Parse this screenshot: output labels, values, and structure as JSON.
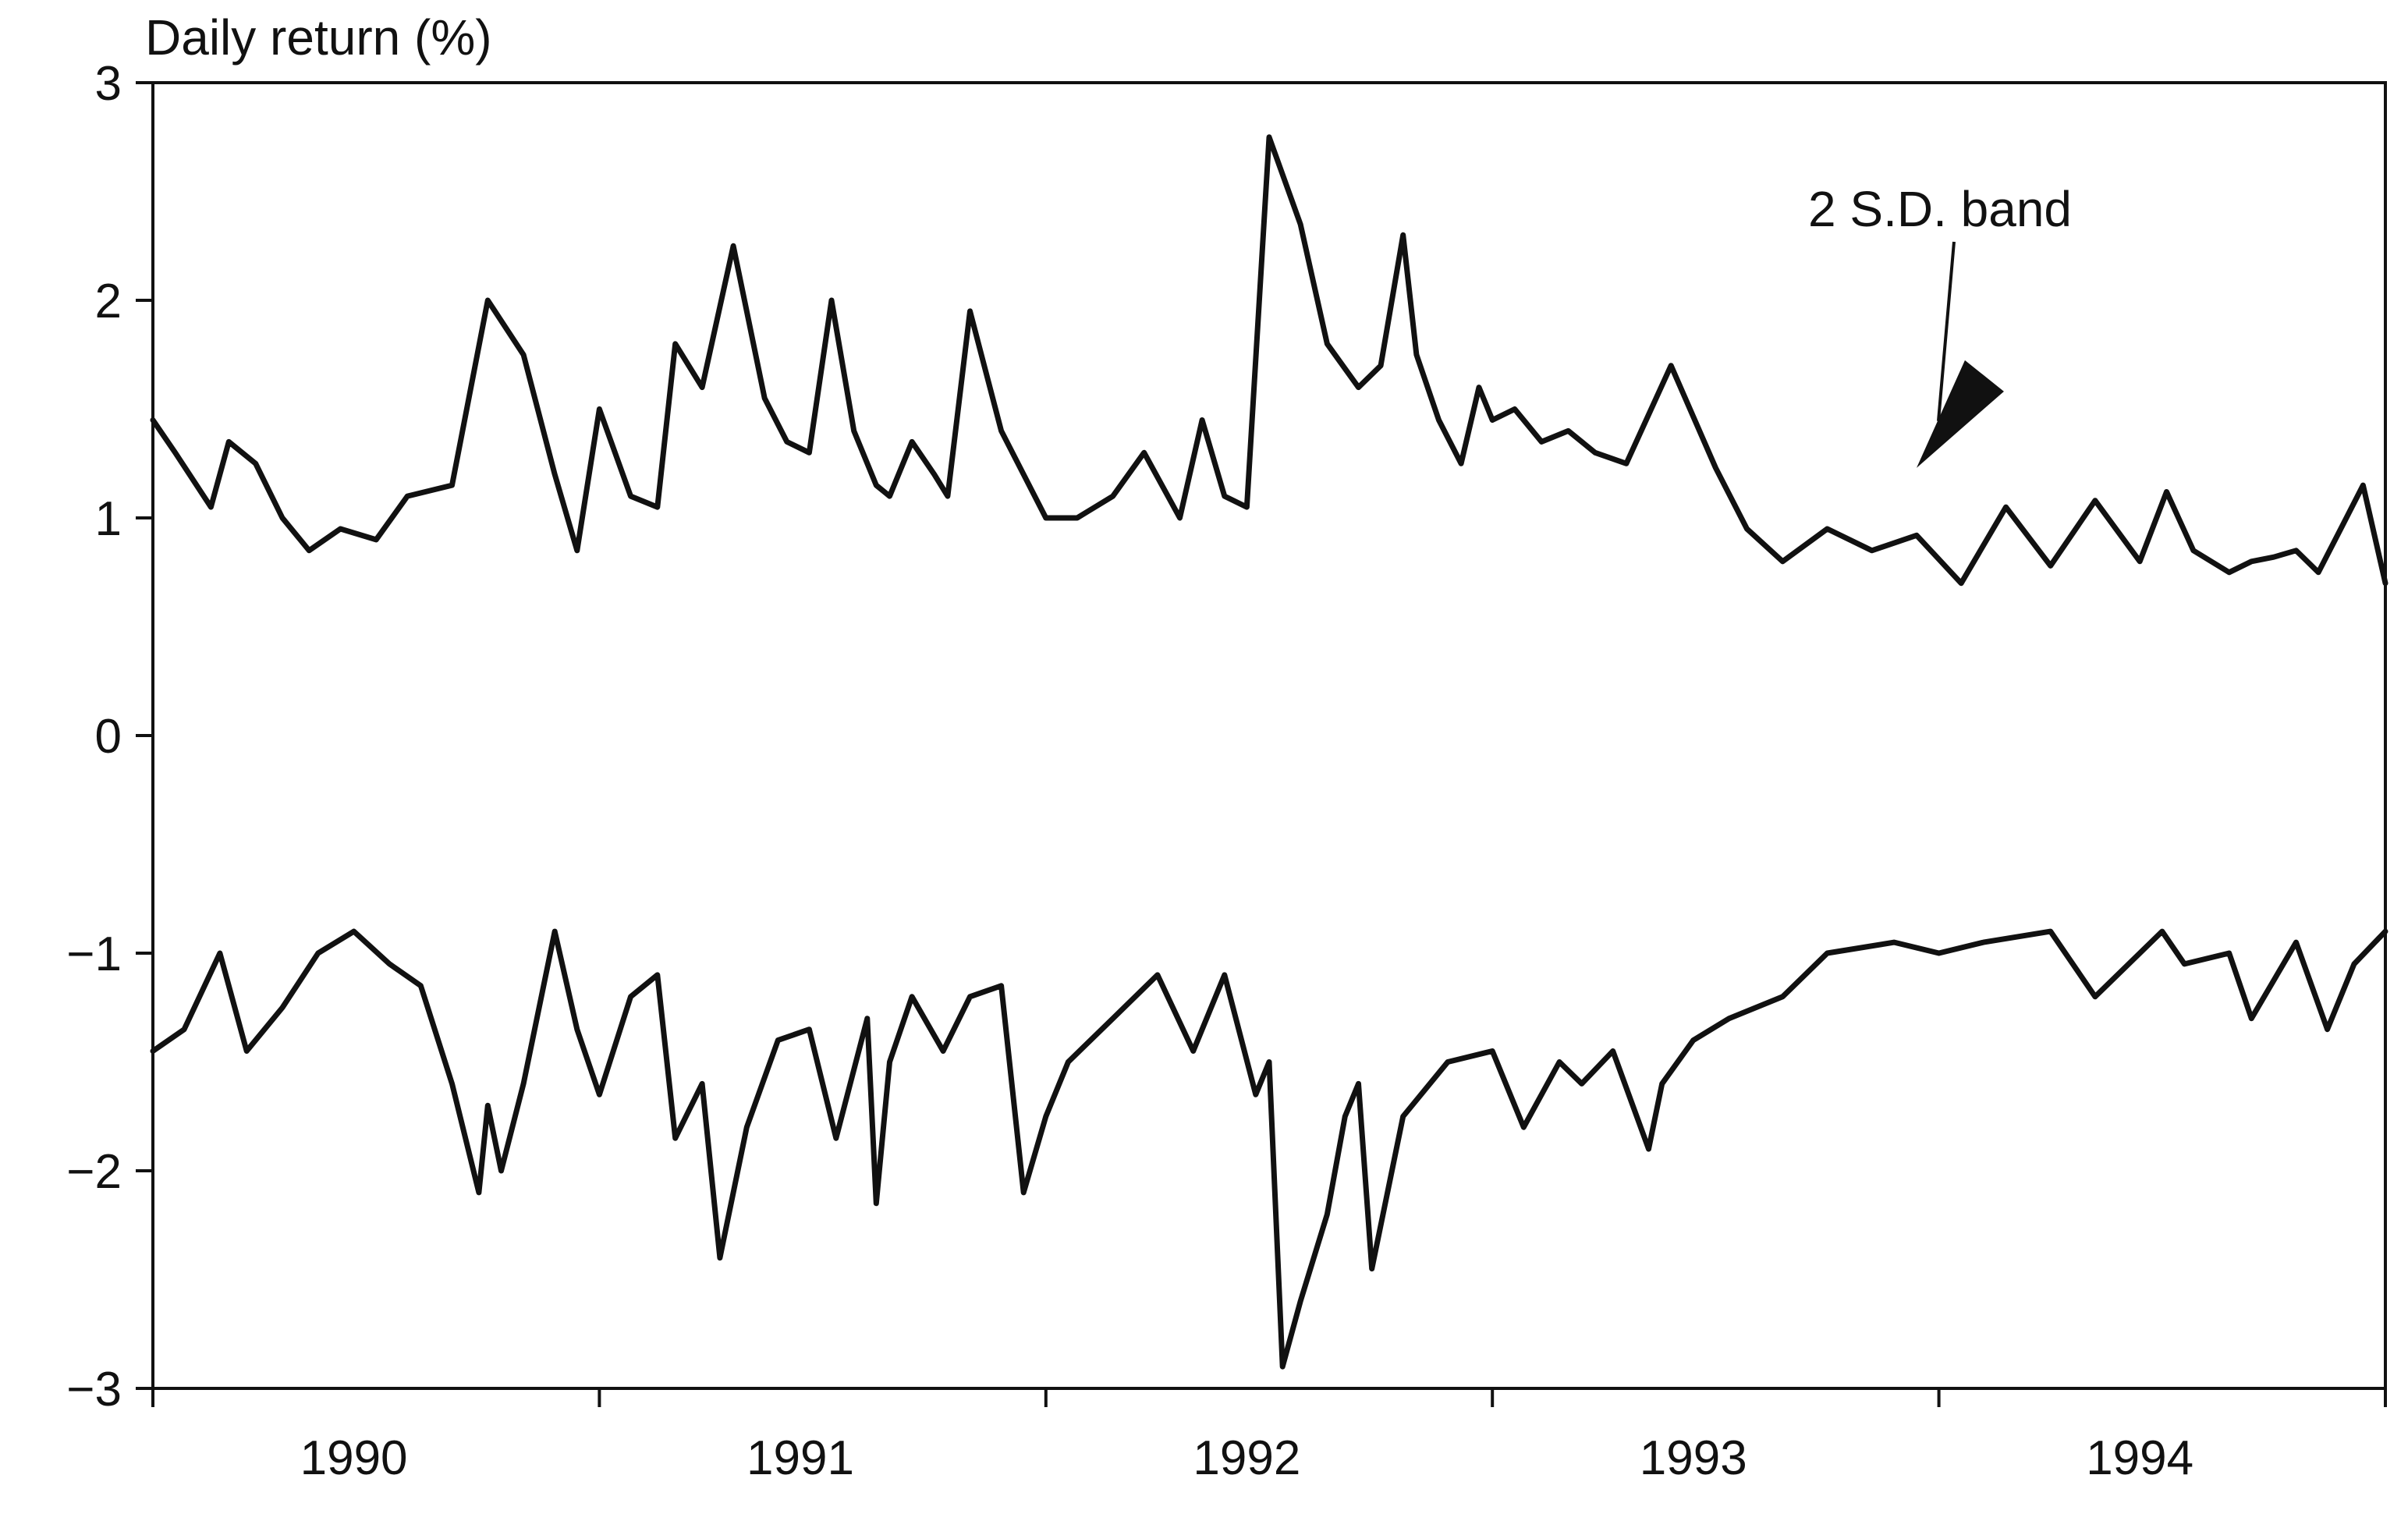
{
  "chart_data": {
    "type": "line",
    "title": "",
    "xlabel": "",
    "ylabel": "Daily return (%)",
    "xlim": [
      1989.55,
      1994.55
    ],
    "ylim": [
      -3,
      3
    ],
    "y_ticks": [
      {
        "value": 3,
        "label": "3"
      },
      {
        "value": 2,
        "label": "2"
      },
      {
        "value": 1,
        "label": "1"
      },
      {
        "value": 0,
        "label": "0"
      },
      {
        "value": -1,
        "label": "−1"
      },
      {
        "value": -2,
        "label": "−2"
      },
      {
        "value": -3,
        "label": "−3"
      }
    ],
    "x_ticks": [
      1989.55,
      1990.55,
      1991.55,
      1992.55,
      1993.55,
      1994.55
    ],
    "x_tick_labels": [
      {
        "value": 1990.0,
        "label": "1990"
      },
      {
        "value": 1991.0,
        "label": "1991"
      },
      {
        "value": 1992.0,
        "label": "1992"
      },
      {
        "value": 1993.0,
        "label": "1993"
      },
      {
        "value": 1994.0,
        "label": "1994"
      }
    ],
    "grid": false,
    "legend": "none",
    "annotation": {
      "text": "2 S.D. band",
      "points_to": {
        "x": 1993.5,
        "y": 1.23
      }
    },
    "series": [
      {
        "color": "#111111",
        "x": [
          1989.55,
          1989.6,
          1989.68,
          1989.72,
          1989.78,
          1989.84,
          1989.9,
          1989.97,
          1990.05,
          1990.12,
          1990.22,
          1990.3,
          1990.38,
          1990.45,
          1990.5,
          1990.55,
          1990.62,
          1990.68,
          1990.72,
          1990.78,
          1990.85,
          1990.92,
          1990.97,
          1991.02,
          1991.07,
          1991.12,
          1991.17,
          1991.2,
          1991.25,
          1991.3,
          1991.33,
          1991.38,
          1991.45,
          1991.5,
          1991.55,
          1991.62,
          1991.7,
          1991.77,
          1991.85,
          1991.9,
          1991.95,
          1992.0,
          1992.05,
          1992.12,
          1992.18,
          1992.25,
          1992.3,
          1992.35,
          1992.38,
          1992.43,
          1992.48,
          1992.52,
          1992.55,
          1992.6,
          1992.66,
          1992.72,
          1992.78,
          1992.85,
          1992.95,
          1993.05,
          1993.12,
          1993.2,
          1993.3,
          1993.4,
          1993.5,
          1993.6,
          1993.7,
          1993.8,
          1993.9,
          1994.0,
          1994.06,
          1994.12,
          1994.2,
          1994.25,
          1994.3,
          1994.35,
          1994.4,
          1994.45,
          1994.5,
          1994.55
        ],
        "y": [
          1.45,
          1.3,
          1.05,
          1.35,
          1.25,
          1.0,
          0.85,
          0.95,
          0.9,
          1.1,
          1.15,
          2.0,
          1.75,
          1.2,
          0.85,
          1.5,
          1.1,
          1.05,
          1.8,
          1.6,
          2.25,
          1.55,
          1.35,
          1.3,
          2.0,
          1.4,
          1.15,
          1.1,
          1.35,
          1.2,
          1.1,
          1.95,
          1.4,
          1.2,
          1.0,
          1.0,
          1.1,
          1.3,
          1.0,
          1.45,
          1.1,
          1.05,
          2.75,
          2.35,
          1.8,
          1.6,
          1.7,
          2.3,
          1.75,
          1.45,
          1.25,
          1.6,
          1.45,
          1.5,
          1.35,
          1.4,
          1.3,
          1.25,
          1.7,
          1.23,
          0.95,
          0.8,
          0.95,
          0.85,
          0.92,
          0.7,
          1.05,
          0.78,
          1.08,
          0.8,
          1.12,
          0.85,
          0.75,
          0.8,
          0.82,
          0.85,
          0.75,
          0.95,
          1.15,
          0.7
        ]
      },
      {
        "color": "#111111",
        "x": [
          1989.55,
          1989.62,
          1989.7,
          1989.76,
          1989.84,
          1989.92,
          1990.0,
          1990.08,
          1990.15,
          1990.22,
          1990.28,
          1990.3,
          1990.33,
          1990.38,
          1990.45,
          1990.5,
          1990.55,
          1990.62,
          1990.68,
          1990.72,
          1990.78,
          1990.82,
          1990.88,
          1990.95,
          1991.02,
          1991.08,
          1991.15,
          1991.17,
          1991.2,
          1991.25,
          1991.32,
          1991.38,
          1991.45,
          1991.5,
          1991.55,
          1991.6,
          1991.7,
          1991.8,
          1991.88,
          1991.95,
          1992.02,
          1992.05,
          1992.08,
          1992.12,
          1992.18,
          1992.22,
          1992.25,
          1992.28,
          1992.35,
          1992.45,
          1992.55,
          1992.62,
          1992.7,
          1992.75,
          1992.82,
          1992.9,
          1992.93,
          1993.0,
          1993.08,
          1993.2,
          1993.3,
          1993.45,
          1993.55,
          1993.65,
          1993.8,
          1993.9,
          1994.05,
          1994.1,
          1994.2,
          1994.25,
          1994.35,
          1994.42,
          1994.48,
          1994.55
        ],
        "y": [
          -1.45,
          -1.35,
          -1.0,
          -1.45,
          -1.25,
          -1.0,
          -0.9,
          -1.05,
          -1.15,
          -1.6,
          -2.1,
          -1.7,
          -2.0,
          -1.6,
          -0.9,
          -1.35,
          -1.65,
          -1.2,
          -1.1,
          -1.85,
          -1.6,
          -2.4,
          -1.8,
          -1.4,
          -1.35,
          -1.85,
          -1.3,
          -2.15,
          -1.5,
          -1.2,
          -1.45,
          -1.2,
          -1.15,
          -2.1,
          -1.75,
          -1.5,
          -1.3,
          -1.1,
          -1.45,
          -1.1,
          -1.65,
          -1.5,
          -2.9,
          -2.6,
          -2.2,
          -1.75,
          -1.6,
          -2.45,
          -1.75,
          -1.5,
          -1.45,
          -1.8,
          -1.5,
          -1.6,
          -1.45,
          -1.9,
          -1.6,
          -1.4,
          -1.3,
          -1.2,
          -1.0,
          -0.95,
          -1.0,
          -0.95,
          -0.9,
          -1.2,
          -0.9,
          -1.05,
          -1.0,
          -1.3,
          -0.95,
          -1.35,
          -1.05,
          -0.9
        ]
      }
    ]
  }
}
